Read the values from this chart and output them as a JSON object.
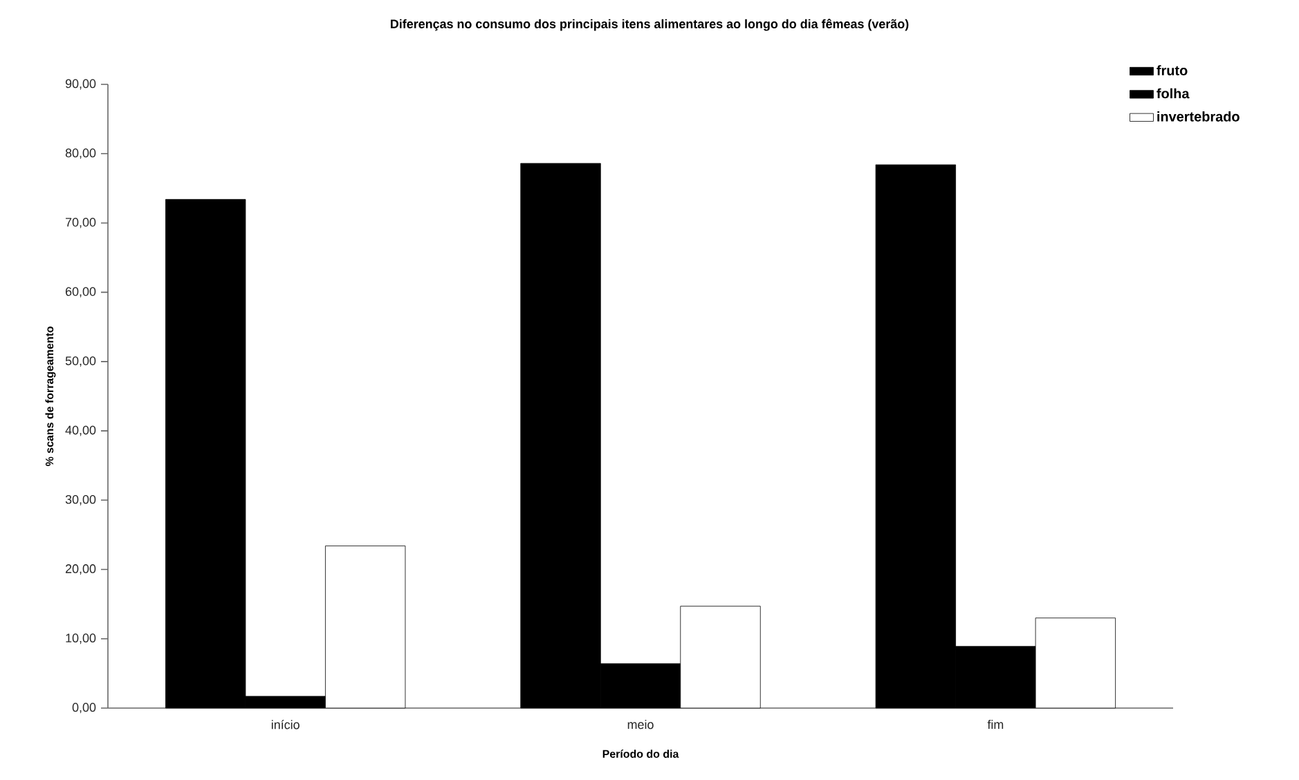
{
  "chart_data": {
    "type": "bar",
    "title": "Diferenças no consumo dos principais itens alimentares ao longo do dia fêmeas (verão)",
    "xlabel": "Período do dia",
    "ylabel": "% scans de forrageamento",
    "categories": [
      "início",
      "meio",
      "fim"
    ],
    "series": [
      {
        "name": "fruto",
        "color": "#000000",
        "values": [
          73.4,
          78.6,
          78.4
        ]
      },
      {
        "name": "folha",
        "color": "#000000",
        "values": [
          1.7,
          6.4,
          8.9
        ]
      },
      {
        "name": "invertebrado",
        "color": "#ffffff",
        "values": [
          23.4,
          14.7,
          13.0
        ]
      }
    ],
    "ylim": [
      0,
      90
    ],
    "yticks": [
      {
        "value": 0,
        "label": "0,00"
      },
      {
        "value": 10,
        "label": "10,00"
      },
      {
        "value": 20,
        "label": "20,00"
      },
      {
        "value": 30,
        "label": "30,00"
      },
      {
        "value": 40,
        "label": "40,00"
      },
      {
        "value": 50,
        "label": "50,00"
      },
      {
        "value": 60,
        "label": "60,00"
      },
      {
        "value": 70,
        "label": "70,00"
      },
      {
        "value": 80,
        "label": "80,00"
      },
      {
        "value": 90,
        "label": "90,00"
      }
    ],
    "grid": false,
    "legend": "top right"
  }
}
